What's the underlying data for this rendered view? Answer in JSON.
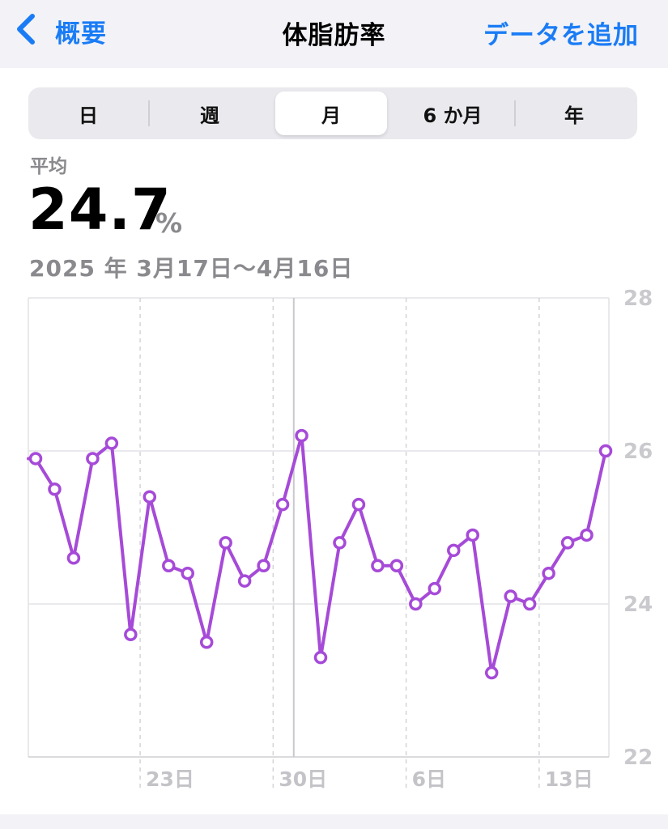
{
  "nav": {
    "back_label": "概要",
    "title": "体脂肪率",
    "action_label": "データを追加",
    "accent_color": "#1a7cf5",
    "back_icon": "chevron-left-icon"
  },
  "segments": {
    "items": [
      "日",
      "週",
      "月",
      "6 か月",
      "年"
    ],
    "selected": "月"
  },
  "summary": {
    "label": "平均",
    "value": "24.7",
    "unit": "%",
    "date_range": "2025 年 3月17日〜4月16日"
  },
  "chart_data": {
    "type": "line",
    "series_color": "#a64ad8",
    "x": [
      "3/17",
      "3/18",
      "3/19",
      "3/20",
      "3/21",
      "3/22",
      "3/23",
      "3/24",
      "3/25",
      "3/26",
      "3/27",
      "3/28",
      "3/29",
      "3/30",
      "3/31",
      "4/1",
      "4/2",
      "4/3",
      "4/4",
      "4/5",
      "4/6",
      "4/7",
      "4/8",
      "4/9",
      "4/10",
      "4/11",
      "4/12",
      "4/13",
      "4/14",
      "4/15",
      "4/16"
    ],
    "y": [
      25.9,
      25.5,
      24.6,
      25.9,
      26.1,
      23.6,
      25.4,
      24.5,
      24.4,
      23.5,
      24.8,
      24.3,
      24.5,
      25.3,
      26.2,
      23.3,
      24.8,
      25.3,
      24.5,
      24.5,
      24.0,
      24.2,
      24.7,
      24.9,
      23.1,
      24.1,
      24.0,
      24.4,
      24.8,
      24.9,
      26.0
    ],
    "ylim": [
      22,
      28
    ],
    "yticks": [
      "22",
      "24",
      "26",
      "28"
    ],
    "xticks": [
      {
        "label": "23日",
        "x": "3/23"
      },
      {
        "label": "30日",
        "x": "3/30"
      },
      {
        "label": "6日",
        "x": "4/6"
      },
      {
        "label": "13日",
        "x": "4/13"
      }
    ],
    "grid": true,
    "highlight_x": "3/31"
  }
}
